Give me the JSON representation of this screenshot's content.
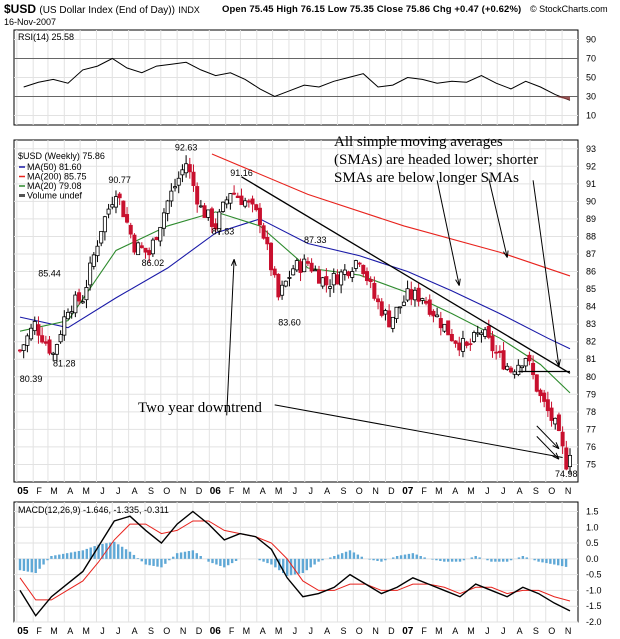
{
  "header": {
    "ticker": "$USD",
    "name": "(US Dollar Index (End of Day))",
    "exchange": "INDX",
    "date": "16-Nov-2007",
    "ohlc": "Open 75.45   High 76.15   Low 75.35   Close 75.86   Chg +0.47 (+0.62%)",
    "copyright": "© StockCharts.com"
  },
  "colors": {
    "up": "#000000",
    "down": "#c8102e",
    "ma50": "#1a1aa8",
    "ma200": "#e8231d",
    "ma20": "#2e8b2e",
    "rsi_fill": "#8b3a3a",
    "macd_hist": "#5fa8d6",
    "signal": "#e8231d"
  },
  "chart_data": [
    {
      "type": "line",
      "panel": "RSI",
      "label": "RSI(14) 25.58",
      "ylim": [
        0,
        100
      ],
      "ticks": [
        90,
        70,
        50,
        30,
        10
      ],
      "x": [
        "2005-01-14",
        "2005-02-11",
        "2005-03-11",
        "2005-04-08",
        "2005-05-06",
        "2005-06-03",
        "2005-07-01",
        "2005-07-29",
        "2005-08-26",
        "2005-09-23",
        "2005-10-21",
        "2005-11-18",
        "2005-12-16",
        "2006-01-13",
        "2006-02-10",
        "2006-03-10",
        "2006-04-07",
        "2006-05-05",
        "2006-06-02",
        "2006-06-30",
        "2006-07-28",
        "2006-08-25",
        "2006-09-22",
        "2006-10-20",
        "2006-11-17",
        "2006-12-15",
        "2007-01-12",
        "2007-02-09",
        "2007-03-09",
        "2007-04-06",
        "2007-05-04",
        "2007-06-01",
        "2007-06-29",
        "2007-07-27",
        "2007-08-24",
        "2007-09-21",
        "2007-10-19",
        "2007-11-16"
      ],
      "values": [
        40,
        45,
        48,
        44,
        58,
        62,
        70,
        60,
        55,
        62,
        64,
        66,
        58,
        52,
        55,
        48,
        38,
        30,
        36,
        42,
        40,
        46,
        50,
        54,
        40,
        42,
        50,
        48,
        44,
        46,
        45,
        52,
        44,
        38,
        46,
        40,
        32,
        26
      ]
    },
    {
      "type": "candlestick",
      "panel": "price",
      "label": "$USD (Weekly) 75.86",
      "ylim": [
        74,
        93.5
      ],
      "ticks": [
        93,
        92,
        91,
        90,
        89,
        88,
        87,
        86,
        85,
        84,
        83,
        82,
        81,
        80,
        79,
        78,
        77,
        76,
        75
      ],
      "x_start": "2005-01-07",
      "x_end": "2007-11-16",
      "anchor_points": [
        {
          "x": "2005-01-07",
          "y": 81.5
        },
        {
          "x": "2005-02-04",
          "y": 83.0
        },
        {
          "x": "2005-03-11",
          "y": 81.3
        },
        {
          "x": "2005-04-08",
          "y": 84.0
        },
        {
          "x": "2005-05-06",
          "y": 84.5
        },
        {
          "x": "2005-06-10",
          "y": 88.5
        },
        {
          "x": "2005-07-08",
          "y": 90.7
        },
        {
          "x": "2005-08-12",
          "y": 87.5
        },
        {
          "x": "2005-09-09",
          "y": 87.0
        },
        {
          "x": "2005-10-14",
          "y": 90.0
        },
        {
          "x": "2005-11-18",
          "y": 92.2
        },
        {
          "x": "2005-12-16",
          "y": 89.6
        },
        {
          "x": "2006-01-13",
          "y": 88.6
        },
        {
          "x": "2006-02-10",
          "y": 90.6
        },
        {
          "x": "2006-03-10",
          "y": 90.0
        },
        {
          "x": "2006-04-07",
          "y": 89.0
        },
        {
          "x": "2006-05-12",
          "y": 84.5
        },
        {
          "x": "2006-06-09",
          "y": 86.2
        },
        {
          "x": "2006-07-07",
          "y": 86.5
        },
        {
          "x": "2006-08-11",
          "y": 85.3
        },
        {
          "x": "2006-09-15",
          "y": 86.0
        },
        {
          "x": "2006-10-13",
          "y": 86.8
        },
        {
          "x": "2006-11-10",
          "y": 84.5
        },
        {
          "x": "2006-12-08",
          "y": 83.2
        },
        {
          "x": "2007-01-12",
          "y": 84.6
        },
        {
          "x": "2007-02-09",
          "y": 84.6
        },
        {
          "x": "2007-03-09",
          "y": 83.4
        },
        {
          "x": "2007-04-06",
          "y": 82.3
        },
        {
          "x": "2007-05-04",
          "y": 81.6
        },
        {
          "x": "2007-06-01",
          "y": 82.6
        },
        {
          "x": "2007-06-29",
          "y": 81.3
        },
        {
          "x": "2007-07-27",
          "y": 80.4
        },
        {
          "x": "2007-08-24",
          "y": 81.2
        },
        {
          "x": "2007-09-21",
          "y": 78.8
        },
        {
          "x": "2007-10-19",
          "y": 77.2
        },
        {
          "x": "2007-11-09",
          "y": 75.1
        },
        {
          "x": "2007-11-16",
          "y": 75.86
        }
      ],
      "ma": [
        {
          "name": "MA(50) 81.60",
          "key": "ma50",
          "points": [
            {
              "x": "2005-01-07",
              "y": 83.4
            },
            {
              "x": "2005-04-08",
              "y": 82.8
            },
            {
              "x": "2005-07-08",
              "y": 84.5
            },
            {
              "x": "2005-10-14",
              "y": 86.2
            },
            {
              "x": "2006-01-13",
              "y": 88.2
            },
            {
              "x": "2006-04-07",
              "y": 89.0
            },
            {
              "x": "2006-07-07",
              "y": 87.6
            },
            {
              "x": "2006-10-13",
              "y": 86.9
            },
            {
              "x": "2007-01-12",
              "y": 86.0
            },
            {
              "x": "2007-04-06",
              "y": 84.9
            },
            {
              "x": "2007-07-06",
              "y": 83.6
            },
            {
              "x": "2007-10-05",
              "y": 82.2
            },
            {
              "x": "2007-11-16",
              "y": 81.6
            }
          ]
        },
        {
          "name": "MA(200) 85.75",
          "key": "ma200",
          "points": [
            {
              "x": "2006-01-06",
              "y": 92.7
            },
            {
              "x": "2006-07-07",
              "y": 90.4
            },
            {
              "x": "2007-01-05",
              "y": 88.6
            },
            {
              "x": "2007-07-06",
              "y": 87.1
            },
            {
              "x": "2007-11-16",
              "y": 85.75
            }
          ]
        },
        {
          "name": "MA(20) 79.08",
          "key": "ma20",
          "points": [
            {
              "x": "2005-01-07",
              "y": 82.6
            },
            {
              "x": "2005-04-08",
              "y": 83.2
            },
            {
              "x": "2005-07-08",
              "y": 87.2
            },
            {
              "x": "2005-10-14",
              "y": 88.6
            },
            {
              "x": "2006-01-13",
              "y": 89.4
            },
            {
              "x": "2006-04-07",
              "y": 88.6
            },
            {
              "x": "2006-07-07",
              "y": 86.2
            },
            {
              "x": "2006-10-13",
              "y": 85.8
            },
            {
              "x": "2007-01-12",
              "y": 84.8
            },
            {
              "x": "2007-04-06",
              "y": 83.6
            },
            {
              "x": "2007-07-06",
              "y": 82.2
            },
            {
              "x": "2007-09-21",
              "y": 80.7
            },
            {
              "x": "2007-11-16",
              "y": 79.08
            }
          ]
        }
      ],
      "legend": [
        "MA(50) 81.60",
        "MA(200) 85.75",
        "MA(20) 79.08",
        "Volume undef"
      ],
      "value_labels": [
        {
          "text": "80.39",
          "x": "2005-01-28",
          "y": 80.39
        },
        {
          "text": "85.44",
          "x": "2005-03-04",
          "y": 85.44
        },
        {
          "text": "81.28",
          "x": "2005-04-01",
          "y": 81.28
        },
        {
          "text": "90.77",
          "x": "2005-07-15",
          "y": 90.77
        },
        {
          "text": "86.02",
          "x": "2005-09-16",
          "y": 86.02
        },
        {
          "text": "92.63",
          "x": "2005-11-18",
          "y": 92.63
        },
        {
          "text": "91.16",
          "x": "2006-03-03",
          "y": 91.16
        },
        {
          "text": "87.83",
          "x": "2006-01-27",
          "y": 87.83
        },
        {
          "text": "87.33",
          "x": "2006-07-21",
          "y": 87.33
        },
        {
          "text": "83.60",
          "x": "2006-06-02",
          "y": 83.6
        },
        {
          "text": "74.98",
          "x": "2007-11-09",
          "y": 74.98
        }
      ],
      "annotations": [
        "All simple moving averages",
        "(SMAs) are headed lower; shorter",
        "SMAs are below longer SMAs",
        "Two year downtrend"
      ],
      "months": [
        "05",
        "F",
        "M",
        "A",
        "M",
        "J",
        "J",
        "A",
        "S",
        "O",
        "N",
        "D",
        "06",
        "F",
        "M",
        "A",
        "M",
        "J",
        "J",
        "A",
        "S",
        "O",
        "N",
        "D",
        "07",
        "F",
        "M",
        "A",
        "M",
        "J",
        "J",
        "A",
        "S",
        "O",
        "N"
      ]
    },
    {
      "type": "line",
      "panel": "MACD",
      "label": "MACD(12,26,9) -1.646, -1.335, -0.311",
      "ylim": [
        -2.0,
        1.8
      ],
      "ticks": [
        1.5,
        1.0,
        0.5,
        0.0,
        -0.5,
        -1.0,
        -1.5,
        -2.0
      ],
      "series": [
        {
          "name": "MACD",
          "values": [
            -1.0,
            -1.8,
            -1.2,
            -0.8,
            -0.4,
            0.4,
            1.2,
            1.35,
            0.9,
            0.5,
            1.1,
            1.5,
            1.1,
            0.6,
            0.8,
            0.7,
            0.3,
            -0.6,
            -1.2,
            -1.1,
            -0.9,
            -0.5,
            -0.8,
            -1.1,
            -0.9,
            -0.6,
            -0.8,
            -1.0,
            -1.2,
            -0.8,
            -1.0,
            -1.2,
            -0.9,
            -1.1,
            -1.4,
            -1.646
          ]
        },
        {
          "name": "Signal",
          "values": [
            -0.6,
            -1.3,
            -1.3,
            -1.0,
            -0.7,
            -0.1,
            0.6,
            1.1,
            1.1,
            0.8,
            0.9,
            1.2,
            1.2,
            0.9,
            0.8,
            0.7,
            0.5,
            0.0,
            -0.7,
            -1.0,
            -1.0,
            -0.8,
            -0.8,
            -1.0,
            -1.0,
            -0.8,
            -0.8,
            -0.9,
            -1.1,
            -0.9,
            -0.9,
            -1.1,
            -1.0,
            -1.0,
            -1.2,
            -1.335
          ]
        }
      ]
    }
  ]
}
